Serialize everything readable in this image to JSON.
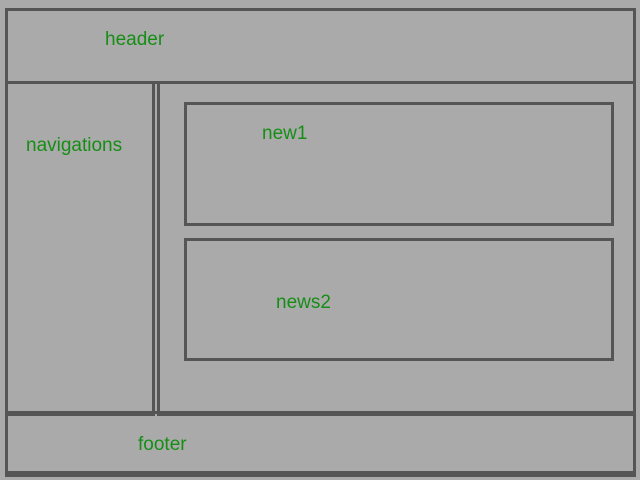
{
  "layout_diagram": {
    "header": {
      "label": "header"
    },
    "navigation": {
      "label": "navigations"
    },
    "content": {
      "news": [
        {
          "label": "new1"
        },
        {
          "label": "news2"
        }
      ]
    },
    "footer": {
      "label": "footer"
    }
  },
  "colors": {
    "background": "#aaaaaa",
    "border": "#555555",
    "label_text": "#168e16"
  }
}
